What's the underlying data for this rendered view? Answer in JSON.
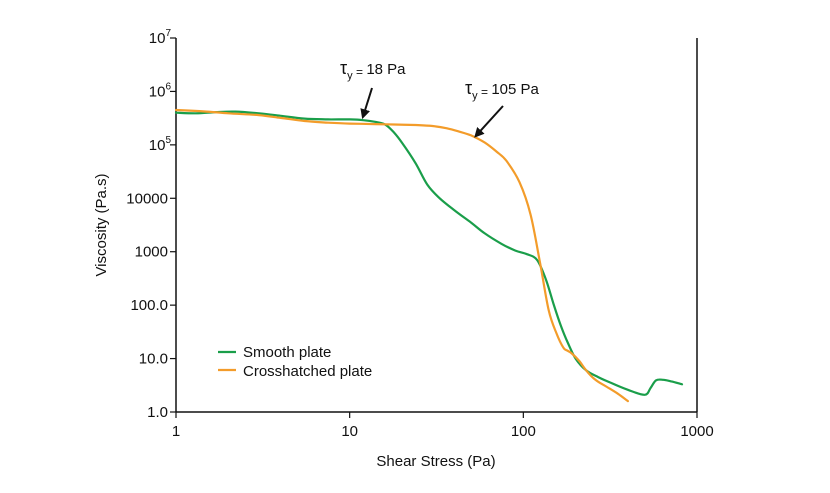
{
  "chart_data": {
    "type": "line",
    "xlabel": "Shear Stress (Pa)",
    "ylabel": "Viscosity (Pa.s)",
    "x_scale": "log",
    "y_scale": "log",
    "xlim": [
      1,
      1000
    ],
    "ylim": [
      1,
      10000000
    ],
    "grid": false,
    "legend_position": "bottom-left",
    "x_ticks": [
      {
        "value": 1,
        "label": "1"
      },
      {
        "value": 10,
        "label": "10"
      },
      {
        "value": 100,
        "label": "100"
      },
      {
        "value": 1000,
        "label": "1000"
      }
    ],
    "y_ticks": [
      {
        "value": 1,
        "label": "1.0"
      },
      {
        "value": 10,
        "label": "10.0"
      },
      {
        "value": 100,
        "label": "100.0"
      },
      {
        "value": 1000,
        "label": "1000"
      },
      {
        "value": 10000,
        "label": "10000"
      },
      {
        "value": 100000,
        "label": "10",
        "sup": "5"
      },
      {
        "value": 1000000,
        "label": "10",
        "sup": "6"
      },
      {
        "value": 10000000,
        "label": "10",
        "sup": "7"
      }
    ],
    "series": [
      {
        "name": "Smooth plate",
        "color": "#1a9e4a",
        "x": [
          1.0,
          1.3,
          1.7,
          2.2,
          3.0,
          4.0,
          5.5,
          7.5,
          10,
          12,
          14,
          16,
          18,
          20,
          24,
          28,
          33,
          40,
          50,
          60,
          75,
          90,
          105,
          120,
          135,
          150,
          165,
          180,
          200,
          230,
          270,
          320,
          400,
          500,
          540,
          580,
          640,
          720,
          820
        ],
        "y": [
          400000,
          390000,
          410000,
          420000,
          390000,
          350000,
          310000,
          300000,
          300000,
          290000,
          270000,
          240000,
          170000,
          110000,
          45000,
          18000,
          10000,
          6000,
          3500,
          2200,
          1400,
          1050,
          900,
          700,
          300,
          100,
          40,
          20,
          10,
          6,
          4.5,
          3.5,
          2.6,
          2.1,
          2.8,
          3.9,
          4.0,
          3.7,
          3.3
        ]
      },
      {
        "name": "Crosshatched plate",
        "color": "#f39c2a",
        "x": [
          1.0,
          1.5,
          2.0,
          3.0,
          4.0,
          5.5,
          7.5,
          10,
          14,
          18,
          24,
          30,
          36,
          42,
          50,
          60,
          70,
          80,
          95,
          110,
          125,
          140,
          155,
          170,
          180,
          190,
          210,
          230,
          260,
          300,
          350,
          400
        ],
        "y": [
          450000,
          420000,
          390000,
          360000,
          320000,
          280000,
          260000,
          250000,
          245000,
          240000,
          235000,
          225000,
          205000,
          180000,
          150000,
          110000,
          75000,
          50000,
          20000,
          5000,
          600,
          80,
          30,
          16,
          14,
          12.5,
          9,
          6,
          4,
          3,
          2.2,
          1.6
        ]
      }
    ],
    "annotations": [
      {
        "tau": "τ",
        "sub": "y",
        "eq": " = ",
        "value": "18 Pa",
        "arrow_to": {
          "x": 12,
          "y": 300000
        }
      },
      {
        "tau": "τ",
        "sub": "y",
        "eq": " = ",
        "value": "105 Pa",
        "arrow_to": {
          "x": 54,
          "y": 130000
        }
      }
    ]
  }
}
